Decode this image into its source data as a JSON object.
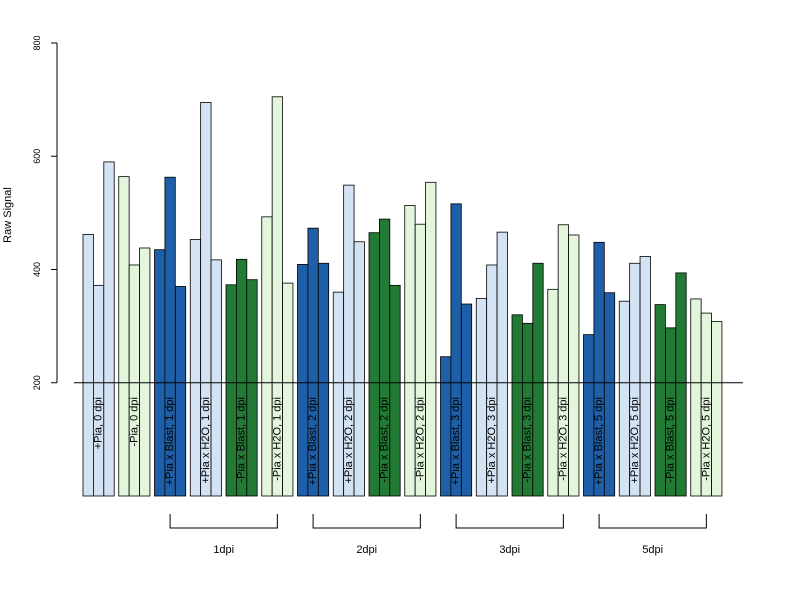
{
  "chart_data": {
    "type": "bar",
    "ylabel": "Raw Signal",
    "ylim": [
      0,
      800
    ],
    "yticks": [
      200,
      400,
      600,
      800
    ],
    "baseline": 200,
    "grid": false,
    "legend": "none",
    "colors": {
      "plus_pia": "#d4e3f4",
      "minus_pia": "#e3f6dc",
      "blast": "#1f5fa8",
      "green_blast": "#227a35"
    },
    "categories": [
      "+Pia, 0 dpi",
      "-Pia, 0 dpi",
      "+Pia x Blast, 1 dpi",
      "+Pia x H2O, 1 dpi",
      "-Pia x Blast, 1 dpi",
      "-Pia x H2O, 1 dpi",
      "+Pia x Blast, 2 dpi",
      "+Pia x H2O, 2 dpi",
      "-Pia x Blast, 2 dpi",
      "-Pia x H2O, 2 dpi",
      "+Pia x Blast, 3 dpi",
      "+Pia x H2O, 3 dpi",
      "-Pia x Blast, 3 dpi",
      "-Pia x H2O, 3 dpi",
      "+Pia x Blast, 5 dpi",
      "+Pia x H2O, 5 dpi",
      "-Pia x Blast, 5 dpi",
      "-Pia x H2O, 5 dpi"
    ],
    "color_keys": [
      "plus_pia",
      "minus_pia",
      "blast",
      "plus_pia",
      "green_blast",
      "minus_pia",
      "blast",
      "plus_pia",
      "green_blast",
      "minus_pia",
      "blast",
      "plus_pia",
      "green_blast",
      "minus_pia",
      "blast",
      "plus_pia",
      "green_blast",
      "minus_pia"
    ],
    "values": [
      [
        462,
        372,
        590
      ],
      [
        564,
        408,
        438
      ],
      [
        435,
        563,
        370
      ],
      [
        453,
        695,
        417
      ],
      [
        373,
        418,
        382
      ],
      [
        493,
        705,
        376
      ],
      [
        409,
        473,
        411
      ],
      [
        360,
        549,
        449
      ],
      [
        465,
        489,
        372
      ],
      [
        513,
        480,
        554
      ],
      [
        246,
        516,
        339
      ],
      [
        349,
        408,
        466
      ],
      [
        320,
        305,
        411
      ],
      [
        365,
        479,
        461
      ],
      [
        285,
        448,
        359
      ],
      [
        344,
        411,
        423
      ],
      [
        338,
        297,
        394
      ],
      [
        348,
        323,
        308
      ]
    ],
    "groups": [
      {
        "label": "1dpi",
        "from": 2,
        "to": 5
      },
      {
        "label": "2dpi",
        "from": 6,
        "to": 9
      },
      {
        "label": "3dpi",
        "from": 10,
        "to": 13
      },
      {
        "label": "5dpi",
        "from": 14,
        "to": 17
      }
    ]
  }
}
